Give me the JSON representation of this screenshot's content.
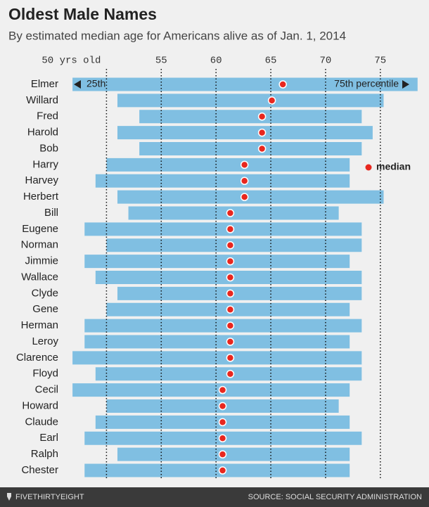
{
  "chart_data": {
    "type": "range",
    "title": "Oldest Male Names",
    "subtitle": "By estimated median age for Americans alive as of Jan. 1, 2014",
    "categories": [
      "Elmer",
      "Willard",
      "Fred",
      "Harold",
      "Bob",
      "Harry",
      "Harvey",
      "Herbert",
      "Bill",
      "Eugene",
      "Norman",
      "Jimmie",
      "Wallace",
      "Clyde",
      "Gene",
      "Herman",
      "Leroy",
      "Clarence",
      "Floyd",
      "Cecil",
      "Howard",
      "Claude",
      "Earl",
      "Ralph",
      "Chester"
    ],
    "series": [
      {
        "name": "25th",
        "color": "#80bfe2",
        "values": [
          46.9,
          51,
          53,
          51,
          53,
          50,
          49,
          51,
          52,
          48,
          50,
          48,
          49,
          51,
          50,
          48,
          48,
          46.9,
          49,
          46.9,
          50,
          49,
          48,
          51,
          48
        ]
      },
      {
        "name": "75th percentile",
        "color": "#80bfe2",
        "values": [
          78.4,
          75.3,
          73.3,
          74.3,
          73.3,
          72.2,
          72.2,
          75.3,
          71.2,
          73.3,
          73.3,
          72.2,
          73.3,
          73.3,
          72.2,
          73.3,
          72.2,
          73.3,
          73.3,
          72.2,
          71.2,
          72.2,
          73.3,
          72.2,
          72.2
        ]
      },
      {
        "name": "median",
        "color": "#e8271f",
        "values": [
          66.1,
          65.1,
          64.2,
          64.2,
          64.2,
          62.6,
          62.6,
          62.6,
          61.3,
          61.3,
          61.3,
          61.3,
          61.3,
          61.3,
          61.3,
          61.3,
          61.3,
          61.3,
          61.3,
          60.6,
          60.6,
          60.6,
          60.6,
          60.6,
          60.6
        ]
      }
    ],
    "xlim": [
      46.7,
      78.8
    ],
    "xticks": [
      {
        "value": 50,
        "label": "50 yrs old"
      },
      55,
      60,
      65,
      70,
      75
    ],
    "grid": true,
    "brand": "FIVETHIRTYEIGHT",
    "source": "SOURCE: SOCIAL SECURITY ADMINISTRATION"
  }
}
